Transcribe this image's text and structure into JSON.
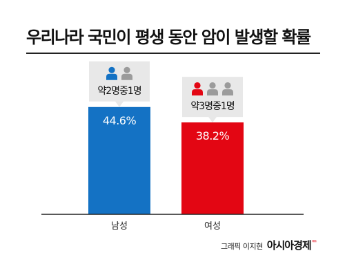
{
  "chart_data": {
    "type": "bar",
    "title": "우리나라 국민이 평생 동안 암이 발생할 확률",
    "categories": [
      "남성",
      "여성"
    ],
    "values": [
      44.6,
      38.2
    ],
    "value_labels": [
      "44.6%",
      "38.2%"
    ],
    "bar_colors": [
      "#1472c4",
      "#e30613"
    ],
    "unit": "%",
    "ylim": [
      0,
      50
    ],
    "grid": false,
    "legend": "none",
    "callouts": [
      {
        "text": "약2명중1명",
        "highlighted_people": 1,
        "total_people": 2
      },
      {
        "text": "약3명중1명",
        "highlighted_people": 1,
        "total_people": 3
      }
    ]
  },
  "colors": {
    "person_gray": "#9b9b9b",
    "callout_bg": "#e8e8e8",
    "axis": "#222222"
  },
  "credit": {
    "author": "그래픽 이지현",
    "brand": "아시아경제",
    "brand_mark": "ᄃ"
  }
}
